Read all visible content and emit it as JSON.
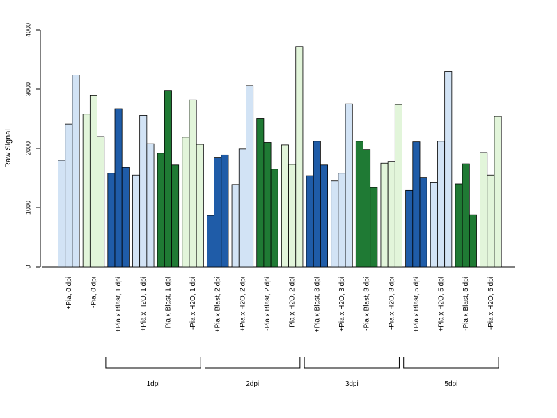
{
  "chart_data": {
    "type": "bar",
    "ylabel": "Raw Signal",
    "ylim": [
      0,
      4000
    ],
    "yticks": [
      0,
      1000,
      2000,
      3000,
      4000
    ],
    "colors": {
      "pia_light": "#d2e3f5",
      "pia_blast": "#1f5ca8",
      "npia_light": "#e2f5da",
      "npia_blast": "#1f7a34"
    },
    "categories": [
      {
        "label": "+Pia, 0 dpi",
        "color_key": "pia_light",
        "values": [
          1800,
          2410,
          3240
        ]
      },
      {
        "label": "-Pia, 0 dpi",
        "color_key": "npia_light",
        "values": [
          2580,
          2890,
          2200
        ]
      },
      {
        "label": "+Pia x Blast, 1 dpi",
        "color_key": "pia_blast",
        "values": [
          1580,
          2670,
          1680
        ]
      },
      {
        "label": "+Pia x H2O, 1 dpi",
        "color_key": "pia_light",
        "values": [
          1550,
          2560,
          2080
        ]
      },
      {
        "label": "-Pia x Blast, 1 dpi",
        "color_key": "npia_blast",
        "values": [
          1920,
          2980,
          1720
        ]
      },
      {
        "label": "-Pia x H2O, 1 dpi",
        "color_key": "npia_light",
        "values": [
          2190,
          2820,
          2070
        ]
      },
      {
        "label": "+Pia x Blast, 2 dpi",
        "color_key": "pia_blast",
        "values": [
          870,
          1840,
          1890
        ]
      },
      {
        "label": "+Pia x H2O, 2 dpi",
        "color_key": "pia_light",
        "values": [
          1390,
          1990,
          3060
        ]
      },
      {
        "label": "-Pia x Blast, 2 dpi",
        "color_key": "npia_blast",
        "values": [
          2500,
          2100,
          1650
        ]
      },
      {
        "label": "-Pia x H2O, 2 dpi",
        "color_key": "npia_light",
        "values": [
          2060,
          1730,
          3720
        ]
      },
      {
        "label": "+Pia x Blast, 3 dpi",
        "color_key": "pia_blast",
        "values": [
          1540,
          2120,
          1720
        ]
      },
      {
        "label": "+Pia x H2O, 3 dpi",
        "color_key": "pia_light",
        "values": [
          1450,
          1580,
          2750
        ]
      },
      {
        "label": "-Pia x Blast, 3 dpi",
        "color_key": "npia_blast",
        "values": [
          2120,
          1980,
          1340
        ]
      },
      {
        "label": "-Pia x H2O, 3 dpi",
        "color_key": "npia_light",
        "values": [
          1750,
          1780,
          2740
        ]
      },
      {
        "label": "+Pia x Blast, 5 dpi",
        "color_key": "pia_blast",
        "values": [
          1290,
          2110,
          1510
        ]
      },
      {
        "label": "+Pia x H2O, 5 dpi",
        "color_key": "pia_light",
        "values": [
          1430,
          2120,
          3300
        ]
      },
      {
        "label": "-Pia x Blast, 5 dpi",
        "color_key": "npia_blast",
        "values": [
          1400,
          1740,
          880
        ]
      },
      {
        "label": "-Pia x H2O, 5 dpi",
        "color_key": "npia_light",
        "values": [
          1930,
          1550,
          2540
        ]
      }
    ],
    "groups": [
      {
        "label": "1dpi",
        "from": 2,
        "to": 5
      },
      {
        "label": "2dpi",
        "from": 6,
        "to": 9
      },
      {
        "label": "3dpi",
        "from": 10,
        "to": 13
      },
      {
        "label": "5dpi",
        "from": 14,
        "to": 17
      }
    ]
  }
}
